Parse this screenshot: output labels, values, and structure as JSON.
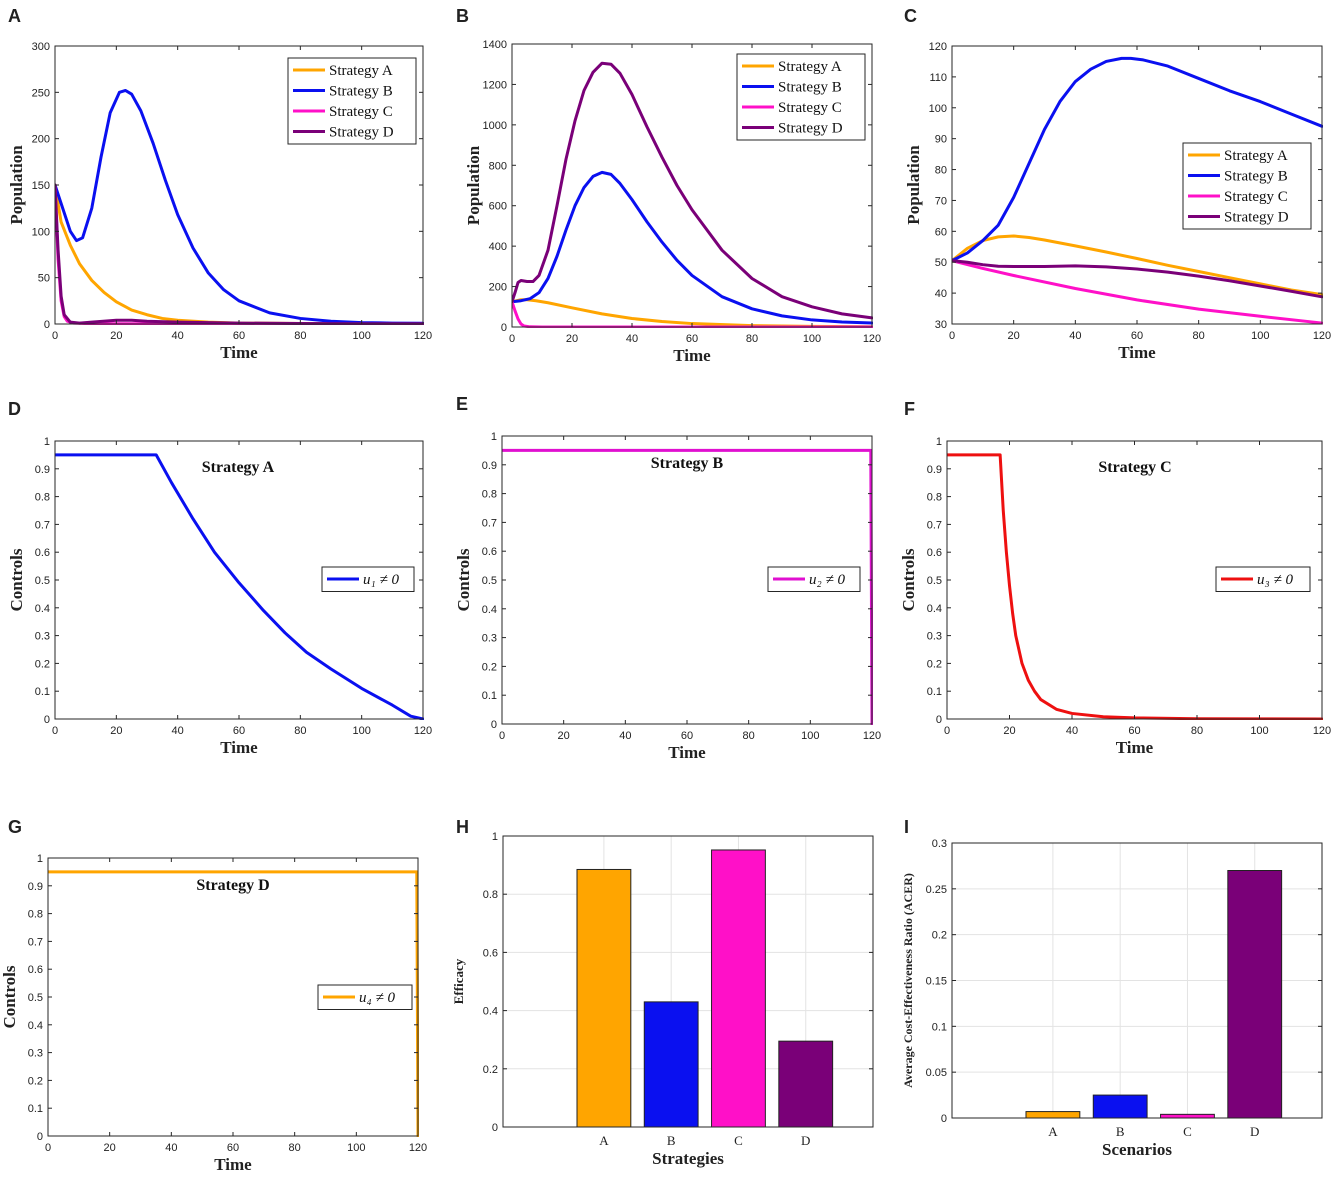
{
  "figure": {
    "colors": {
      "A": "#FFA500",
      "B": "#0A10F0",
      "C": "#FF10C8",
      "D": "#7A0078",
      "red": "#EE1010"
    }
  },
  "chart_data": [
    {
      "panel": "A",
      "type": "line",
      "xlabel": "Time",
      "ylabel": "Population",
      "xlim": [
        0,
        120
      ],
      "ylim": [
        0,
        300
      ],
      "xticks": [
        0,
        20,
        40,
        60,
        80,
        100,
        120
      ],
      "yticks": [
        0,
        50,
        100,
        150,
        200,
        250,
        300
      ],
      "legend": "top-right",
      "series": [
        {
          "name": "Strategy A",
          "color": "#FFA500",
          "x": [
            0,
            2,
            5,
            8,
            12,
            16,
            20,
            25,
            30,
            35,
            40,
            50,
            60,
            80,
            100,
            120
          ],
          "y": [
            150,
            110,
            85,
            65,
            47,
            34,
            24,
            15,
            10,
            6,
            4,
            2,
            1,
            0.5,
            0.3,
            0.2
          ]
        },
        {
          "name": "Strategy B",
          "color": "#0A10F0",
          "x": [
            0,
            2,
            5,
            7,
            9,
            12,
            15,
            18,
            21,
            23,
            25,
            28,
            32,
            36,
            40,
            45,
            50,
            55,
            60,
            70,
            80,
            90,
            100,
            110,
            120
          ],
          "y": [
            150,
            130,
            100,
            90,
            93,
            125,
            180,
            228,
            250,
            252,
            248,
            230,
            195,
            155,
            118,
            82,
            55,
            37,
            25,
            12,
            6,
            3,
            1.5,
            1,
            0.8
          ]
        },
        {
          "name": "Strategy C",
          "color": "#FF10C8",
          "x": [
            0,
            1,
            2,
            3,
            4,
            6,
            10,
            20,
            40,
            60,
            120
          ],
          "y": [
            150,
            70,
            25,
            8,
            3,
            1,
            0.5,
            0.3,
            0.1,
            0.05,
            0
          ]
        },
        {
          "name": "Strategy D",
          "color": "#7A0078",
          "x": [
            0,
            1,
            2,
            3,
            5,
            8,
            12,
            20,
            25,
            30,
            40,
            50,
            60,
            80,
            100,
            120
          ],
          "y": [
            150,
            80,
            30,
            10,
            2,
            1,
            2,
            4,
            4,
            3,
            2,
            1.5,
            1,
            0.5,
            0.3,
            0.2
          ]
        }
      ]
    },
    {
      "panel": "B",
      "type": "line",
      "xlabel": "Time",
      "ylabel": "Population",
      "xlim": [
        0,
        120
      ],
      "ylim": [
        0,
        1400
      ],
      "xticks": [
        0,
        20,
        40,
        60,
        80,
        100,
        120
      ],
      "yticks": [
        0,
        200,
        400,
        600,
        800,
        1000,
        1200,
        1400
      ],
      "legend": "top-right",
      "series": [
        {
          "name": "Strategy A",
          "color": "#FFA500",
          "x": [
            0,
            3,
            5,
            8,
            12,
            20,
            30,
            40,
            50,
            60,
            80,
            100,
            120
          ],
          "y": [
            125,
            135,
            135,
            130,
            120,
            95,
            65,
            42,
            27,
            17,
            7,
            3,
            1
          ]
        },
        {
          "name": "Strategy B",
          "color": "#0A10F0",
          "x": [
            0,
            3,
            6,
            9,
            12,
            15,
            18,
            21,
            24,
            27,
            30,
            33,
            36,
            40,
            45,
            50,
            55,
            60,
            70,
            80,
            90,
            100,
            110,
            120
          ],
          "y": [
            125,
            130,
            140,
            170,
            240,
            350,
            480,
            600,
            690,
            745,
            765,
            755,
            710,
            630,
            520,
            420,
            330,
            255,
            150,
            90,
            55,
            35,
            25,
            20
          ]
        },
        {
          "name": "Strategy C",
          "color": "#FF10C8",
          "x": [
            0,
            1,
            2,
            3,
            4,
            6,
            10,
            20,
            40,
            60,
            120
          ],
          "y": [
            125,
            80,
            40,
            15,
            5,
            1,
            0,
            0,
            0,
            0,
            0
          ]
        },
        {
          "name": "Strategy D",
          "color": "#7A0078",
          "x": [
            0,
            1,
            2,
            3,
            5,
            7,
            9,
            12,
            15,
            18,
            21,
            24,
            27,
            30,
            33,
            36,
            40,
            45,
            50,
            55,
            60,
            70,
            80,
            90,
            100,
            110,
            120
          ],
          "y": [
            125,
            170,
            220,
            230,
            225,
            225,
            255,
            380,
            600,
            830,
            1020,
            1170,
            1260,
            1305,
            1300,
            1255,
            1150,
            990,
            840,
            700,
            580,
            380,
            240,
            150,
            100,
            65,
            45
          ]
        }
      ]
    },
    {
      "panel": "C",
      "type": "line",
      "xlabel": "Time",
      "ylabel": "Population",
      "xlim": [
        0,
        120
      ],
      "ylim": [
        30,
        120
      ],
      "xticks": [
        0,
        20,
        40,
        60,
        80,
        100,
        120
      ],
      "yticks": [
        30,
        40,
        50,
        60,
        70,
        80,
        90,
        100,
        110,
        120
      ],
      "legend": "right",
      "series": [
        {
          "name": "Strategy A",
          "color": "#FFA500",
          "x": [
            0,
            5,
            10,
            15,
            20,
            25,
            30,
            40,
            50,
            60,
            70,
            80,
            90,
            100,
            110,
            120
          ],
          "y": [
            50.5,
            54.5,
            57,
            58.2,
            58.5,
            58,
            57.2,
            55.3,
            53.3,
            51.2,
            49,
            47,
            45,
            43,
            41,
            39.5
          ]
        },
        {
          "name": "Strategy B",
          "color": "#0A10F0",
          "x": [
            0,
            5,
            10,
            15,
            20,
            25,
            30,
            35,
            40,
            45,
            50,
            55,
            58,
            62,
            70,
            80,
            90,
            100,
            110,
            120
          ],
          "y": [
            50.5,
            53,
            57,
            62,
            71,
            82,
            93,
            102,
            108.5,
            112.5,
            115,
            116,
            116,
            115.5,
            113.5,
            109.5,
            105.5,
            102,
            98,
            94
          ]
        },
        {
          "name": "Strategy C",
          "color": "#FF10C8",
          "x": [
            0,
            10,
            20,
            40,
            60,
            80,
            100,
            120
          ],
          "y": [
            50.5,
            48,
            45.7,
            41.5,
            37.8,
            34.8,
            32.5,
            30.3
          ]
        },
        {
          "name": "Strategy D",
          "color": "#7A0078",
          "x": [
            0,
            5,
            10,
            15,
            20,
            30,
            40,
            50,
            60,
            70,
            80,
            90,
            100,
            110,
            120
          ],
          "y": [
            50.5,
            50,
            49.2,
            48.7,
            48.6,
            48.6,
            48.8,
            48.5,
            47.8,
            46.8,
            45.5,
            44,
            42.3,
            40.6,
            38.8
          ]
        }
      ]
    },
    {
      "panel": "D",
      "type": "line",
      "inner_title": "Strategy A",
      "xlabel": "Time",
      "ylabel": "Controls",
      "xlim": [
        0,
        120
      ],
      "ylim": [
        0,
        1
      ],
      "xticks": [
        0,
        20,
        40,
        60,
        80,
        100,
        120
      ],
      "yticks": [
        0,
        0.1,
        0.2,
        0.3,
        0.4,
        0.5,
        0.6,
        0.7,
        0.8,
        0.9,
        1
      ],
      "legend": "right",
      "series": [
        {
          "name": "u₁ ≠ 0",
          "color": "#0A10F0",
          "x": [
            0,
            33,
            38,
            45,
            52,
            60,
            68,
            75,
            82,
            90,
            100,
            110,
            116,
            120
          ],
          "y": [
            0.95,
            0.95,
            0.85,
            0.72,
            0.6,
            0.49,
            0.39,
            0.31,
            0.24,
            0.18,
            0.11,
            0.05,
            0.01,
            0
          ]
        }
      ]
    },
    {
      "panel": "E",
      "type": "line",
      "inner_title": "Strategy B",
      "xlabel": "Time",
      "ylabel": "Controls",
      "xlim": [
        0,
        120
      ],
      "ylim": [
        0,
        1
      ],
      "xticks": [
        0,
        20,
        40,
        60,
        80,
        100,
        120
      ],
      "yticks": [
        0,
        0.1,
        0.2,
        0.3,
        0.4,
        0.5,
        0.6,
        0.7,
        0.8,
        0.9,
        1
      ],
      "legend": "right",
      "series": [
        {
          "name": "u₂ ≠ 0",
          "color": "#E010D0",
          "x": [
            0,
            119.5,
            119.6,
            120
          ],
          "y": [
            0.95,
            0.95,
            0.95,
            0
          ]
        }
      ]
    },
    {
      "panel": "F",
      "type": "line",
      "inner_title": "Strategy C",
      "xlabel": "Time",
      "ylabel": "Controls",
      "xlim": [
        0,
        120
      ],
      "ylim": [
        0,
        1
      ],
      "xticks": [
        0,
        20,
        40,
        60,
        80,
        100,
        120
      ],
      "yticks": [
        0,
        0.1,
        0.2,
        0.3,
        0.4,
        0.5,
        0.6,
        0.7,
        0.8,
        0.9,
        1
      ],
      "legend": "right",
      "series": [
        {
          "name": "u₃ ≠ 0",
          "color": "#EE1010",
          "x": [
            0,
            17,
            18,
            19,
            20,
            21,
            22,
            24,
            26,
            28,
            30,
            35,
            40,
            50,
            60,
            80,
            100,
            120
          ],
          "y": [
            0.95,
            0.95,
            0.75,
            0.6,
            0.48,
            0.38,
            0.3,
            0.2,
            0.14,
            0.1,
            0.07,
            0.035,
            0.02,
            0.008,
            0.004,
            0.001,
            0.0005,
            0
          ]
        }
      ]
    },
    {
      "panel": "G",
      "type": "line",
      "inner_title": "Strategy D",
      "xlabel": "Time",
      "ylabel": "Controls",
      "xlim": [
        0,
        120
      ],
      "ylim": [
        0,
        1
      ],
      "xticks": [
        0,
        20,
        40,
        60,
        80,
        100,
        120
      ],
      "yticks": [
        0,
        0.1,
        0.2,
        0.3,
        0.4,
        0.5,
        0.6,
        0.7,
        0.8,
        0.9,
        1
      ],
      "legend": "right",
      "series": [
        {
          "name": "u₄ ≠ 0",
          "color": "#FFA500",
          "x": [
            0,
            119.5,
            119.6,
            120
          ],
          "y": [
            0.95,
            0.95,
            0.95,
            0
          ]
        }
      ]
    },
    {
      "panel": "H",
      "type": "bar",
      "xlabel": "Strategies",
      "ylabel": "Efficacy",
      "categories": [
        "A",
        "B",
        "C",
        "D"
      ],
      "values": [
        0.885,
        0.43,
        0.952,
        0.295
      ],
      "colors": [
        "#FFA500",
        "#0A10F0",
        "#FF10C8",
        "#7A0078"
      ],
      "ylim": [
        0,
        1
      ],
      "yticks": [
        0,
        0.2,
        0.4,
        0.6,
        0.8,
        1
      ],
      "grid": true
    },
    {
      "panel": "I",
      "type": "bar",
      "xlabel": "Scenarios",
      "ylabel": "Average Cost-Effectiveness Ratio (ACER)",
      "categories": [
        "A",
        "B",
        "C",
        "D"
      ],
      "values": [
        0.007,
        0.025,
        0.004,
        0.27
      ],
      "colors": [
        "#FFA500",
        "#0A10F0",
        "#FF10C8",
        "#7A0078"
      ],
      "ylim": [
        0,
        0.3
      ],
      "yticks": [
        0,
        0.05,
        0.1,
        0.15,
        0.2,
        0.25,
        0.3
      ],
      "grid": true
    }
  ]
}
